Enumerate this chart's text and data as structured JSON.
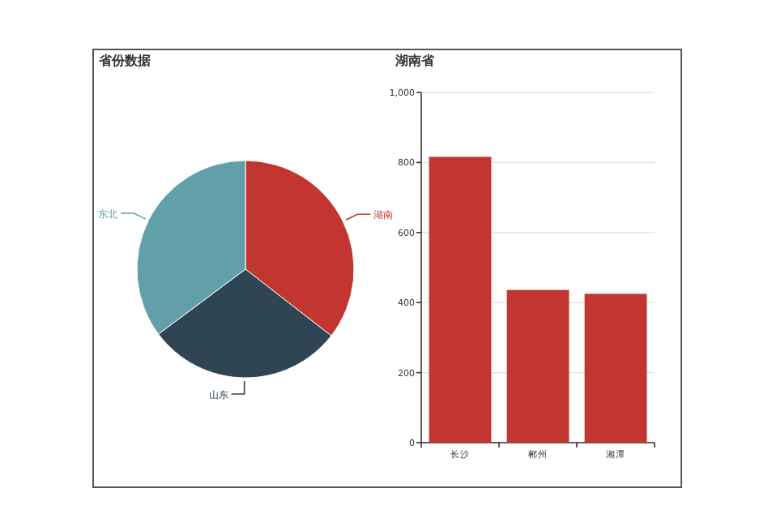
{
  "chart_data": [
    {
      "type": "pie",
      "title": "省份数据",
      "categories": [
        "湖南",
        "山东",
        "东北"
      ],
      "values": [
        35.5,
        29.3,
        35.2
      ],
      "colors": [
        "#c23531",
        "#2f4554",
        "#61a0a8"
      ]
    },
    {
      "type": "bar",
      "title": "湖南省",
      "categories": [
        "长沙",
        "郴州",
        "湘潭"
      ],
      "values": [
        816,
        436,
        425
      ],
      "color": "#c23531",
      "ylim": [
        0,
        1000
      ],
      "yticks": [
        0,
        200,
        400,
        600,
        800,
        {
          "value": 1000,
          "label": "1,000"
        }
      ],
      "grid": "y"
    }
  ]
}
